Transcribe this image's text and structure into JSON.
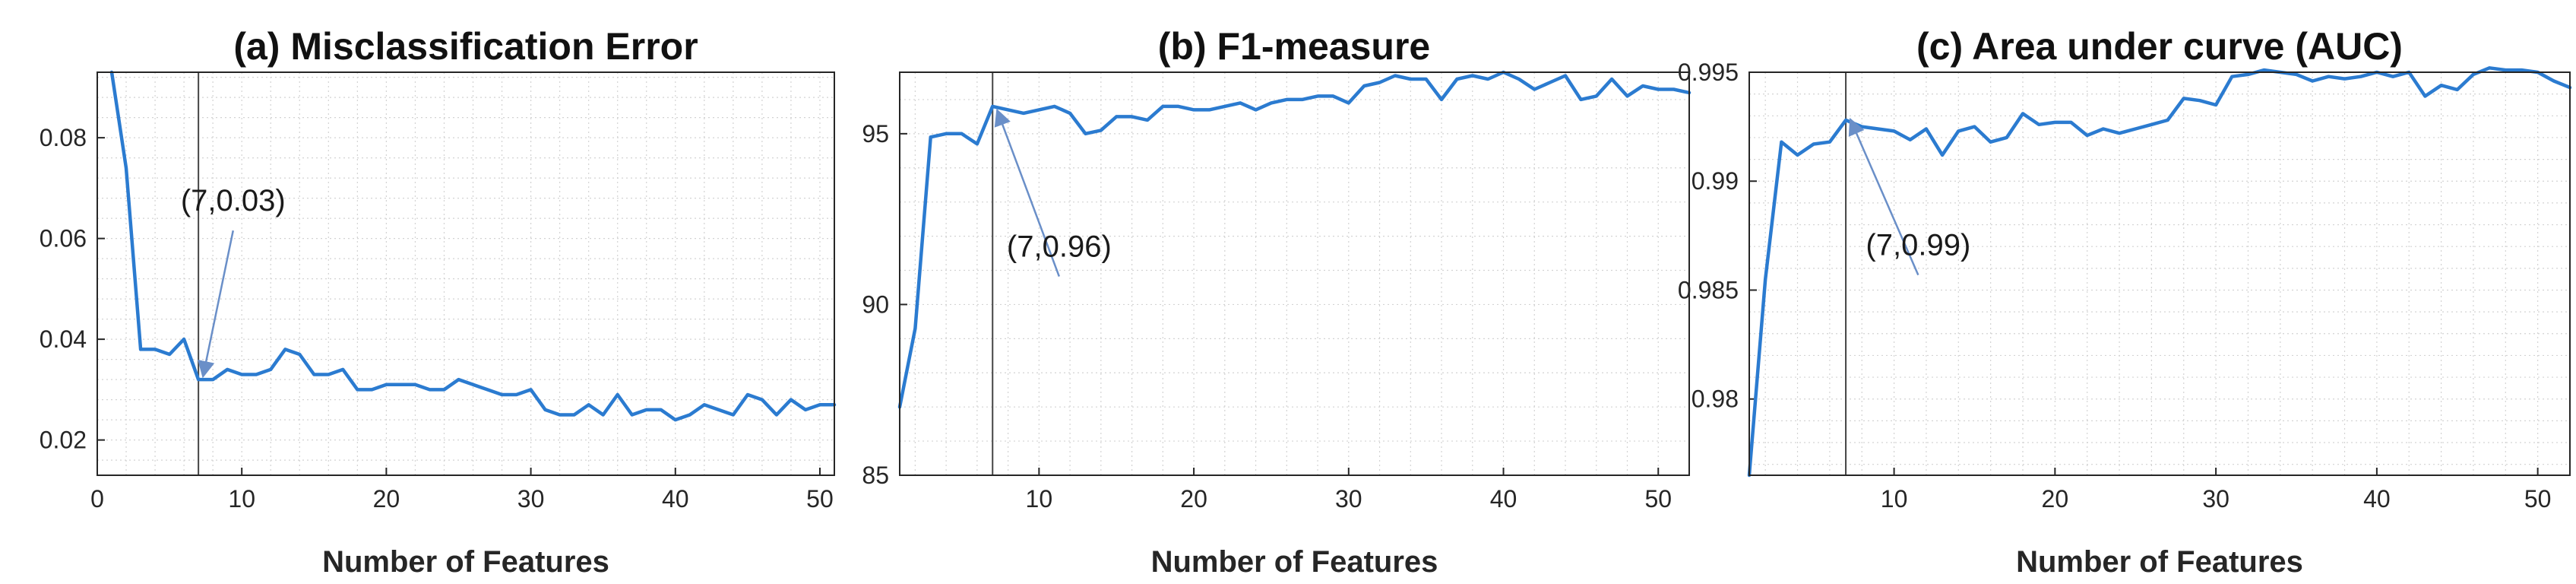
{
  "chart_data": [
    {
      "type": "line",
      "title": "(a) Misclassification Error",
      "xlabel": "Number of Features",
      "ylabel": "",
      "xlim": [
        0,
        51
      ],
      "ylim": [
        0.013,
        0.093
      ],
      "xticks": [
        0,
        10,
        20,
        30,
        40,
        50
      ],
      "xtick_labels": [
        "0",
        "10",
        "20",
        "30",
        "40",
        "50"
      ],
      "yticks": [
        0.02,
        0.04,
        0.06,
        0.08
      ],
      "ytick_labels": [
        "0.02",
        "0.04",
        "0.06",
        "0.08"
      ],
      "grid": true,
      "line_color": "#2b7bd0",
      "x": [
        1,
        2,
        3,
        4,
        5,
        6,
        7,
        8,
        9,
        10,
        11,
        12,
        13,
        14,
        15,
        16,
        17,
        18,
        19,
        20,
        21,
        22,
        23,
        24,
        25,
        26,
        27,
        28,
        29,
        30,
        31,
        32,
        33,
        34,
        35,
        36,
        37,
        38,
        39,
        40,
        41,
        42,
        43,
        44,
        45,
        46,
        47,
        48,
        49,
        50,
        51
      ],
      "y": [
        0.093,
        0.074,
        0.038,
        0.038,
        0.037,
        0.04,
        0.032,
        0.032,
        0.034,
        0.033,
        0.033,
        0.034,
        0.038,
        0.037,
        0.033,
        0.033,
        0.034,
        0.03,
        0.03,
        0.031,
        0.031,
        0.031,
        0.03,
        0.03,
        0.032,
        0.031,
        0.03,
        0.029,
        0.029,
        0.03,
        0.026,
        0.025,
        0.025,
        0.027,
        0.025,
        0.029,
        0.025,
        0.026,
        0.026,
        0.024,
        0.025,
        0.027,
        0.026,
        0.025,
        0.029,
        0.028,
        0.025,
        0.028,
        0.026,
        0.027,
        0.027
      ],
      "marker_x": 7,
      "annotation": {
        "text": "(7,0.03)",
        "x": 7,
        "y": 0.032,
        "text_x": 9.4,
        "text_y": 0.0655
      }
    },
    {
      "type": "line",
      "title": "(b) F1-measure",
      "xlabel": "Number of Features",
      "ylabel": "",
      "xlim": [
        1,
        52
      ],
      "ylim": [
        85,
        96.8
      ],
      "xticks": [
        10,
        20,
        30,
        40,
        50
      ],
      "xtick_labels": [
        "10",
        "20",
        "30",
        "40",
        "50"
      ],
      "yticks": [
        85,
        90,
        95
      ],
      "ytick_labels": [
        "85",
        "90",
        "95"
      ],
      "grid": true,
      "line_color": "#2b7bd0",
      "x": [
        1,
        2,
        3,
        4,
        5,
        6,
        7,
        8,
        9,
        10,
        11,
        12,
        13,
        14,
        15,
        16,
        17,
        18,
        19,
        20,
        21,
        22,
        23,
        24,
        25,
        26,
        27,
        28,
        29,
        30,
        31,
        32,
        33,
        34,
        35,
        36,
        37,
        38,
        39,
        40,
        41,
        42,
        43,
        44,
        45,
        46,
        47,
        48,
        49,
        50,
        51,
        52
      ],
      "y": [
        87,
        89.3,
        94.9,
        95.0,
        95.0,
        94.7,
        95.8,
        95.7,
        95.6,
        95.7,
        95.8,
        95.6,
        95.0,
        95.1,
        95.5,
        95.5,
        95.4,
        95.8,
        95.8,
        95.7,
        95.7,
        95.8,
        95.9,
        95.7,
        95.9,
        96.0,
        96.0,
        96.1,
        96.1,
        95.9,
        96.4,
        96.5,
        96.7,
        96.6,
        96.6,
        96.0,
        96.6,
        96.7,
        96.6,
        96.8,
        96.6,
        96.3,
        96.5,
        96.7,
        96.0,
        96.1,
        96.6,
        96.1,
        96.4,
        96.3,
        96.3,
        96.2
      ],
      "marker_x": 7,
      "annotation": {
        "text": "(7,0.96)",
        "x": 7,
        "y": 95.6,
        "text_x": 11.3,
        "text_y": 91.4
      }
    },
    {
      "type": "line",
      "title": "(c) Area under curve (AUC)",
      "xlabel": "Number of Features",
      "ylabel": "",
      "xlim": [
        1,
        52
      ],
      "ylim": [
        0.9765,
        0.995
      ],
      "xticks": [
        10,
        20,
        30,
        40,
        50
      ],
      "xtick_labels": [
        "10",
        "20",
        "30",
        "40",
        "50"
      ],
      "yticks": [
        0.98,
        0.985,
        0.99,
        0.995
      ],
      "ytick_labels": [
        "0.98",
        "0.985",
        "0.99",
        "0.995"
      ],
      "grid": true,
      "line_color": "#2b7bd0",
      "x": [
        1,
        2,
        3,
        4,
        5,
        6,
        7,
        8,
        9,
        10,
        11,
        12,
        13,
        14,
        15,
        16,
        17,
        18,
        19,
        20,
        21,
        22,
        23,
        24,
        25,
        26,
        27,
        28,
        29,
        30,
        31,
        32,
        33,
        34,
        35,
        36,
        37,
        38,
        39,
        40,
        41,
        42,
        43,
        44,
        45,
        46,
        47,
        48,
        49,
        50,
        51,
        52
      ],
      "y": [
        0.9765,
        0.9855,
        0.9918,
        0.9912,
        0.9917,
        0.9918,
        0.9928,
        0.9925,
        0.9924,
        0.9923,
        0.9919,
        0.9924,
        0.9912,
        0.9923,
        0.9925,
        0.9918,
        0.992,
        0.9931,
        0.9926,
        0.9927,
        0.9927,
        0.9921,
        0.9924,
        0.9922,
        0.9924,
        0.9926,
        0.9928,
        0.9938,
        0.9937,
        0.9935,
        0.9948,
        0.9949,
        0.9951,
        0.995,
        0.9949,
        0.9946,
        0.9948,
        0.9947,
        0.9948,
        0.995,
        0.9948,
        0.995,
        0.9939,
        0.9944,
        0.9942,
        0.9949,
        0.9952,
        0.9951,
        0.9951,
        0.995,
        0.9946,
        0.9943
      ],
      "marker_x": 7,
      "annotation": {
        "text": "(7,0.99)",
        "x": 7,
        "y": 0.9927,
        "text_x": 11.5,
        "text_y": 0.9866
      }
    }
  ]
}
